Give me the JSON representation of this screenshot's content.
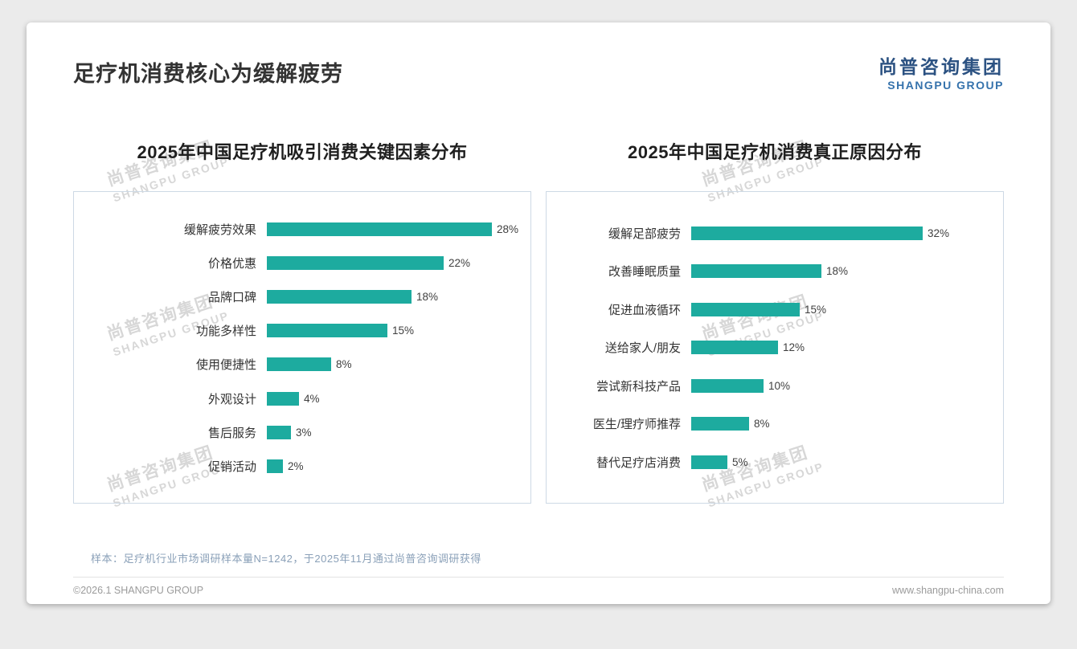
{
  "page": {
    "title": "足疗机消费核心为缓解疲劳",
    "logo": {
      "cn": "尚普咨询集团",
      "en": "SHANGPU GROUP"
    },
    "watermark": {
      "cn": "尚普咨询集团",
      "en": "SHANGPU GROUP"
    },
    "footer": {
      "note": "样本：足疗机行业市场调研样本量N=1242，于2025年11月通过尚普咨询调研获得",
      "copyright": "©2026.1 SHANGPU GROUP",
      "website": "www.shangpu-china.com"
    }
  },
  "colors": {
    "bar": "#1dab9f",
    "logo_cn": "#2c5282",
    "logo_en": "#3572ac",
    "panel_border": "#cdd9e5"
  },
  "chart_data": [
    {
      "type": "bar",
      "orientation": "horizontal",
      "title": "2025年中国足疗机吸引消费关键因素分布",
      "categories": [
        "缓解疲劳效果",
        "价格优惠",
        "品牌口碑",
        "功能多样性",
        "使用便捷性",
        "外观设计",
        "售后服务",
        "促销活动"
      ],
      "values": [
        28,
        22,
        18,
        15,
        8,
        4,
        3,
        2
      ],
      "unit": "%",
      "xlim": [
        0,
        30
      ],
      "grid": false,
      "legend": "none",
      "value_labels": "outside-end"
    },
    {
      "type": "bar",
      "orientation": "horizontal",
      "title": "2025年中国足疗机消费真正原因分布",
      "categories": [
        "缓解足部疲劳",
        "改善睡眠质量",
        "促进血液循环",
        "送给家人/朋友",
        "尝试新科技产品",
        "医生/理疗师推荐",
        "替代足疗店消费"
      ],
      "values": [
        32,
        18,
        15,
        12,
        10,
        8,
        5
      ],
      "unit": "%",
      "xlim": [
        0,
        35
      ],
      "grid": false,
      "legend": "none",
      "value_labels": "outside-end"
    }
  ]
}
